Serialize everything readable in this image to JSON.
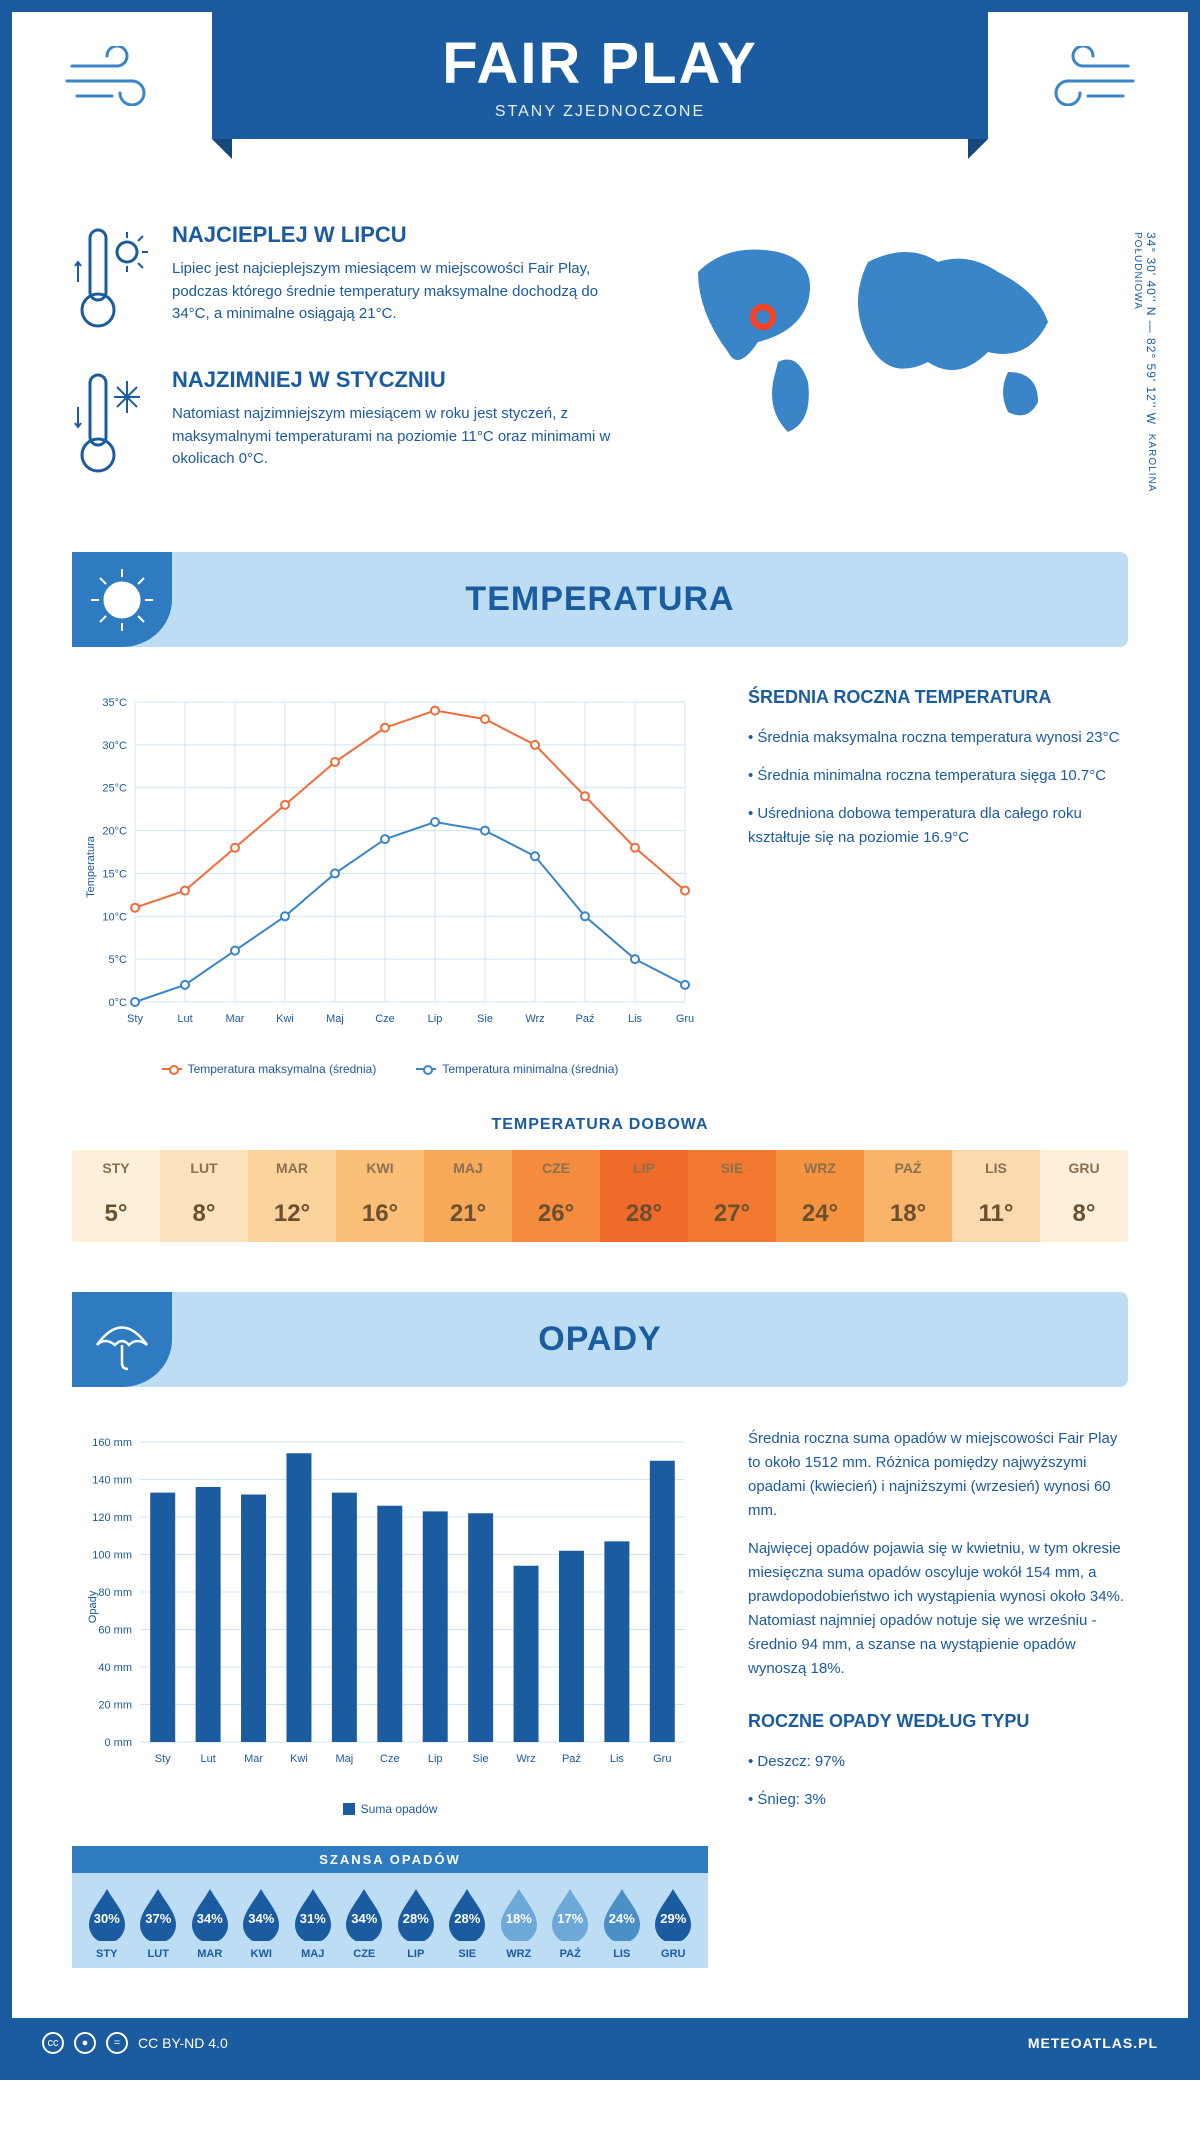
{
  "header": {
    "title": "FAIR PLAY",
    "subtitle": "STANY ZJEDNOCZONE"
  },
  "coords": {
    "line1": "34° 30' 40'' N — 82° 59' 12'' W",
    "line2": "KAROLINA POŁUDNIOWA"
  },
  "facts": {
    "hot": {
      "title": "NAJCIEPLEJ W LIPCU",
      "text": "Lipiec jest najcieplejszym miesiącem w miejscowości Fair Play, podczas którego średnie temperatury maksymalne dochodzą do 34°C, a minimalne osiągają 21°C."
    },
    "cold": {
      "title": "NAJZIMNIEJ W STYCZNIU",
      "text": "Natomiast najzimniejszym miesiącem w roku jest styczeń, z maksymalnymi temperaturami na poziomie 11°C oraz minimami w okolicach 0°C."
    }
  },
  "sections": {
    "temp": "TEMPERATURA",
    "rain": "OPADY"
  },
  "months": [
    "Sty",
    "Lut",
    "Mar",
    "Kwi",
    "Maj",
    "Cze",
    "Lip",
    "Sie",
    "Wrz",
    "Paź",
    "Lis",
    "Gru"
  ],
  "months_upper": [
    "STY",
    "LUT",
    "MAR",
    "KWI",
    "MAJ",
    "CZE",
    "LIP",
    "SIE",
    "WRZ",
    "PAŹ",
    "LIS",
    "GRU"
  ],
  "temp_chart": {
    "type": "line",
    "ylabel": "Temperatura",
    "ylim": [
      0,
      35
    ],
    "ytick_step": 5,
    "ytick_suffix": "°C",
    "series": {
      "max": {
        "color": "#f26b3a",
        "values": [
          11,
          13,
          18,
          23,
          28,
          32,
          34,
          33,
          30,
          24,
          18,
          13
        ],
        "legend": "Temperatura maksymalna (średnia)"
      },
      "min": {
        "color": "#3a84c8",
        "values": [
          0,
          2,
          6,
          10,
          15,
          19,
          21,
          20,
          17,
          10,
          5,
          2
        ],
        "legend": "Temperatura minimalna (średnia)"
      }
    },
    "grid_color": "#d0e4f5",
    "label_fontsize": 11
  },
  "temp_avg": {
    "title": "ŚREDNIA ROCZNA TEMPERATURA",
    "bullets": [
      "Średnia maksymalna roczna temperatura wynosi 23°C",
      "Średnia minimalna roczna temperatura sięga 10.7°C",
      "Uśredniona dobowa temperatura dla całego roku kształtuje się na poziomie 16.9°C"
    ]
  },
  "daily_temp": {
    "title": "TEMPERATURA DOBOWA",
    "values": [
      "5°",
      "8°",
      "12°",
      "16°",
      "21°",
      "26°",
      "28°",
      "27°",
      "24°",
      "18°",
      "11°",
      "8°"
    ],
    "colors": [
      "#fdf0da",
      "#fce3be",
      "#fbd39c",
      "#fabf76",
      "#f7a859",
      "#f58b3c",
      "#f06a2a",
      "#f2792f",
      "#f5933f",
      "#f9b469",
      "#fcdab0",
      "#fdf0da"
    ]
  },
  "precip_chart": {
    "type": "bar",
    "ylabel": "Opady",
    "ylim": [
      0,
      160
    ],
    "ytick_step": 20,
    "ytick_suffix": " mm",
    "values": [
      133,
      136,
      132,
      154,
      133,
      126,
      123,
      122,
      94,
      102,
      107,
      150
    ],
    "bar_color": "#1b5ba0",
    "legend": "Suma opadów"
  },
  "precip_text": {
    "p1": "Średnia roczna suma opadów w miejscowości Fair Play to około 1512 mm. Różnica pomiędzy najwyższymi opadami (kwiecień) i najniższymi (wrzesień) wynosi 60 mm.",
    "p2": "Najwięcej opadów pojawia się w kwietniu, w tym okresie miesięczna suma opadów oscyluje wokół 154 mm, a prawdopodobieństwo ich wystąpienia wynosi około 34%. Natomiast najmniej opadów notuje się we wrześniu - średnio 94 mm, a szanse na wystąpienie opadów wynoszą 18%."
  },
  "rain_chance": {
    "title": "SZANSA OPADÓW",
    "values": [
      30,
      37,
      34,
      34,
      31,
      34,
      28,
      28,
      18,
      17,
      24,
      29
    ],
    "drop_colors": [
      "#1b5ba0",
      "#1b5ba0",
      "#1b5ba0",
      "#1b5ba0",
      "#1b5ba0",
      "#1b5ba0",
      "#1b5ba0",
      "#1b5ba0",
      "#6ea8d8",
      "#6ea8d8",
      "#4b8fc7",
      "#1b5ba0"
    ]
  },
  "precip_by_type": {
    "title": "ROCZNE OPADY WEDŁUG TYPU",
    "items": [
      "Deszcz: 97%",
      "Śnieg: 3%"
    ]
  },
  "footer": {
    "license": "CC BY-ND 4.0",
    "site": "METEOATLAS.PL"
  }
}
